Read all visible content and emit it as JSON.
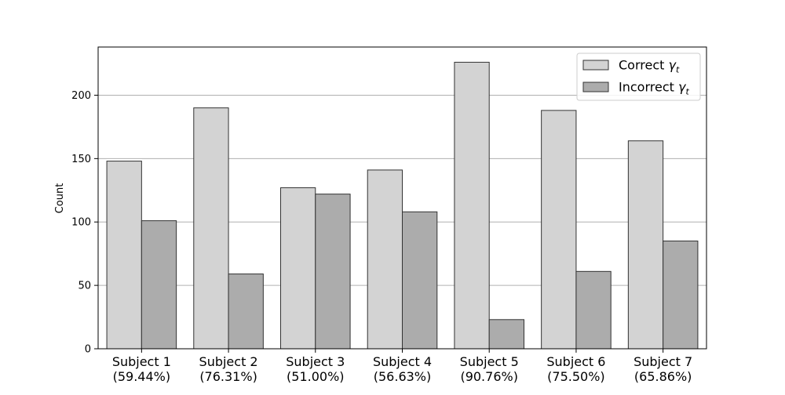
{
  "chart_data": {
    "type": "bar",
    "title": "",
    "xlabel": "",
    "ylabel": "Count",
    "ylim": [
      0,
      238
    ],
    "yticks": [
      0,
      50,
      100,
      150,
      200
    ],
    "grid": {
      "y": true,
      "x": false
    },
    "legend_position": "top-right",
    "categories": [
      {
        "line1": "Subject 1",
        "line2": "(59.44%)"
      },
      {
        "line1": "Subject 2",
        "line2": "(76.31%)"
      },
      {
        "line1": "Subject 3",
        "line2": "(51.00%)"
      },
      {
        "line1": "Subject 4",
        "line2": "(56.63%)"
      },
      {
        "line1": "Subject 5",
        "line2": "(90.76%)"
      },
      {
        "line1": "Subject 6",
        "line2": "(75.50%)"
      },
      {
        "line1": "Subject 7",
        "line2": "(65.86%)"
      }
    ],
    "series": [
      {
        "name_text": "Correct ",
        "name_symbol": "γ",
        "name_sub": "t",
        "color": "#d3d3d3",
        "values": [
          148,
          190,
          127,
          141,
          226,
          188,
          164
        ]
      },
      {
        "name_text": "Incorrect ",
        "name_symbol": "γ",
        "name_sub": "t",
        "color": "#acacac",
        "values": [
          101,
          59,
          122,
          108,
          23,
          61,
          85
        ]
      }
    ],
    "edge_color": "#333333",
    "grid_color": "#b0b0b0"
  }
}
